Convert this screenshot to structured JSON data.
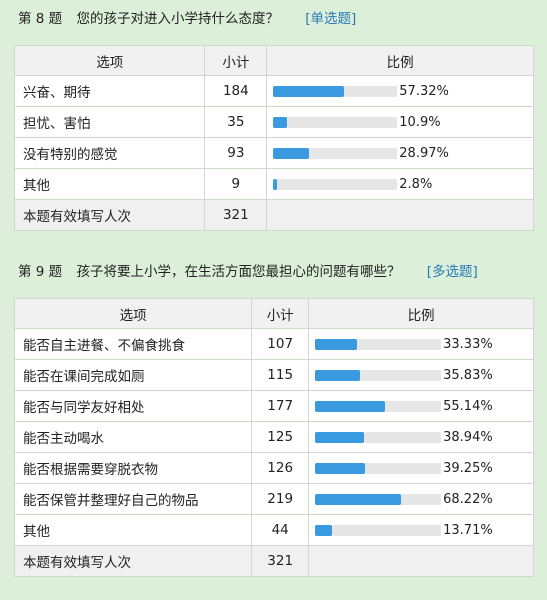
{
  "colors": {
    "bar_fill": "#3a9ae0",
    "bar_track": "#e6e6e6",
    "tag": "#2a7ab8",
    "background": "#dcefd9"
  },
  "q8": {
    "no": "第 8 题",
    "title": "您的孩子对进入小学持什么态度？",
    "type": "[单选题]",
    "headers": {
      "option": "选项",
      "count": "小计",
      "ratio": "比例"
    },
    "rows": [
      {
        "option": "兴奋、期待",
        "count": "184",
        "pct_label": "57.32%",
        "pct": 57.32
      },
      {
        "option": "担忧、害怕",
        "count": "35",
        "pct_label": "10.9%",
        "pct": 10.9
      },
      {
        "option": "没有特别的感觉",
        "count": "93",
        "pct_label": "28.97%",
        "pct": 28.97
      },
      {
        "option": "其他",
        "count": "9",
        "pct_label": "2.8%",
        "pct": 2.8
      }
    ],
    "total": {
      "label": "本题有效填写人次",
      "count": "321"
    }
  },
  "q9": {
    "no": "第 9 题",
    "title": "孩子将要上小学，在生活方面您最担心的问题有哪些？",
    "type": "[多选题]",
    "headers": {
      "option": "选项",
      "count": "小计",
      "ratio": "比例"
    },
    "rows": [
      {
        "option": "能否自主进餐、不偏食挑食",
        "count": "107",
        "pct_label": "33.33%",
        "pct": 33.33
      },
      {
        "option": "能否在课间完成如厕",
        "count": "115",
        "pct_label": "35.83%",
        "pct": 35.83
      },
      {
        "option": "能否与同学友好相处",
        "count": "177",
        "pct_label": "55.14%",
        "pct": 55.14
      },
      {
        "option": "能否主动喝水",
        "count": "125",
        "pct_label": "38.94%",
        "pct": 38.94
      },
      {
        "option": "能否根据需要穿脱衣物",
        "count": "126",
        "pct_label": "39.25%",
        "pct": 39.25
      },
      {
        "option": "能否保管并整理好自己的物品",
        "count": "219",
        "pct_label": "68.22%",
        "pct": 68.22
      },
      {
        "option": "其他",
        "count": "44",
        "pct_label": "13.71%",
        "pct": 13.71
      }
    ],
    "total": {
      "label": "本题有效填写人次",
      "count": "321"
    }
  }
}
